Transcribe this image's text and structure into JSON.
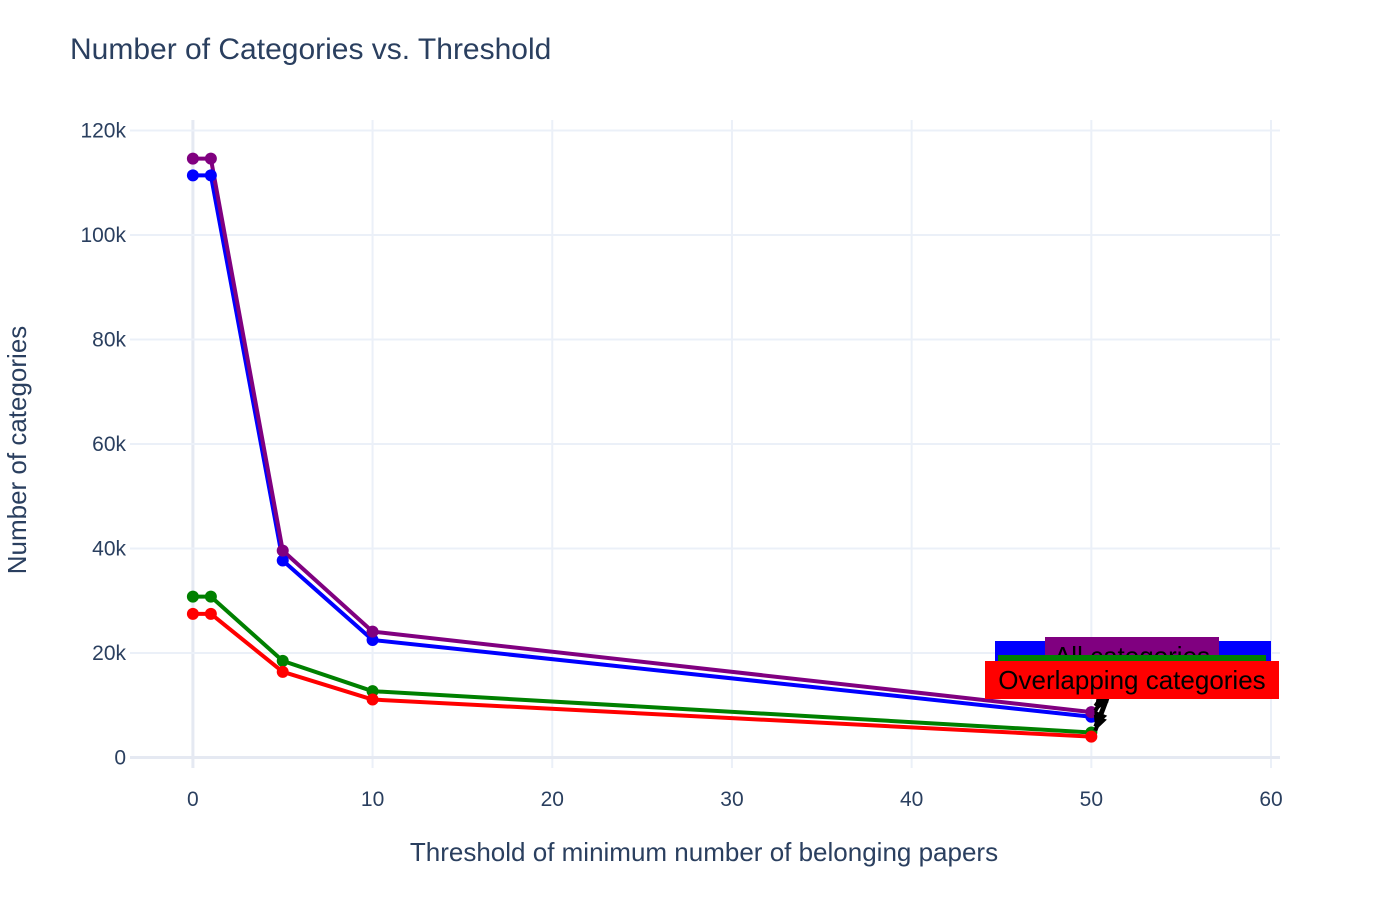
{
  "chart_data": {
    "type": "line",
    "title": "Number of Categories vs. Threshold",
    "xlabel": "Threshold of minimum number of belonging papers",
    "ylabel": "Number of categories",
    "xlim": [
      -3.5,
      60.5
    ],
    "ylim": [
      -2000,
      122000
    ],
    "x_ticks": [
      0,
      10,
      20,
      30,
      40,
      50,
      60
    ],
    "x_tick_labels": [
      "0",
      "10",
      "20",
      "30",
      "40",
      "50",
      "60"
    ],
    "y_ticks": [
      0,
      20000,
      40000,
      60000,
      80000,
      100000,
      120000
    ],
    "y_tick_labels": [
      "0",
      "20k",
      "40k",
      "60k",
      "80k",
      "100k",
      "120k"
    ],
    "grid": true,
    "legend": false,
    "x": [
      0,
      1,
      5,
      10,
      50
    ],
    "series": [
      {
        "color": "#0000ff",
        "values": [
          111400,
          111400,
          37700,
          22500,
          7800
        ]
      },
      {
        "color": "#800080",
        "values": [
          114600,
          114600,
          39600,
          24100,
          8700
        ]
      },
      {
        "color": "#008000",
        "values": [
          30800,
          30800,
          18500,
          12700,
          4800
        ]
      },
      {
        "color": "#ff0000",
        "values": [
          27500,
          27500,
          16400,
          11100,
          4000
        ]
      }
    ],
    "annotations": [
      {
        "text": "All categories",
        "bg": "#0000ff",
        "x": 50,
        "y": 7800
      },
      {
        "text": "All categories",
        "bg": "#800080",
        "x": 50,
        "y": 8700
      },
      {
        "text": "Overlapping categories",
        "bg": "#008000",
        "x": 50,
        "y": 4800
      },
      {
        "text": "Overlapping categories",
        "bg": "#ff0000",
        "x": 50,
        "y": 4000
      }
    ]
  }
}
